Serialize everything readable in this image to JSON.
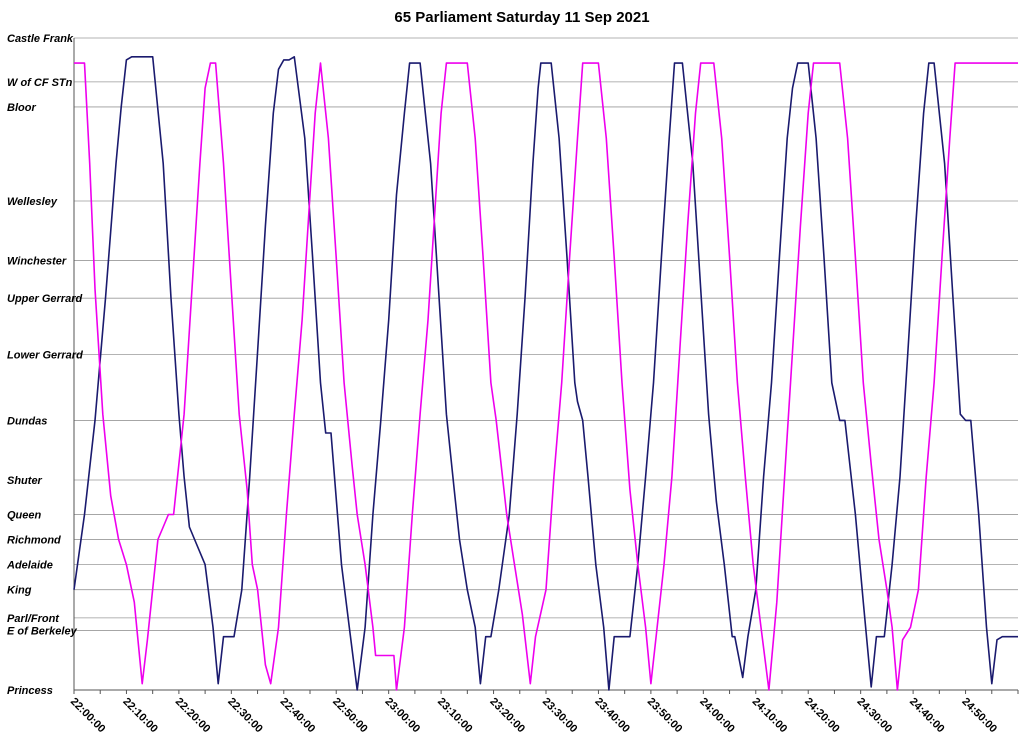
{
  "chart_data": {
    "type": "line",
    "title": "65 Parliament Saturday 11 Sep 2021",
    "xlabel": "",
    "ylabel": "",
    "grid": true,
    "x_range_minutes": [
      1320,
      1500
    ],
    "stops": [
      {
        "name": "Castle Frank",
        "pos": 0
      },
      {
        "name": "W of CF STn",
        "pos": 7
      },
      {
        "name": "Bloor",
        "pos": 11
      },
      {
        "name": "Wellesley",
        "pos": 26
      },
      {
        "name": "Winchester",
        "pos": 35.5
      },
      {
        "name": "Upper Gerrard",
        "pos": 41.5
      },
      {
        "name": "Lower Gerrard",
        "pos": 50.5
      },
      {
        "name": "Dundas",
        "pos": 61
      },
      {
        "name": "Shuter",
        "pos": 70.5
      },
      {
        "name": "Queen",
        "pos": 76
      },
      {
        "name": "Richmond",
        "pos": 80
      },
      {
        "name": "Adelaide",
        "pos": 84
      },
      {
        "name": "King",
        "pos": 88
      },
      {
        "name": "Parl/Front",
        "pos": 92.5
      },
      {
        "name": "E of Berkeley",
        "pos": 94.5
      },
      {
        "name": "Princess",
        "pos": 104
      }
    ],
    "x_tick_labels": [
      "22:00:00",
      "22:10:00",
      "22:20:00",
      "22:30:00",
      "22:40:00",
      "22:50:00",
      "23:00:00",
      "23:10:00",
      "23:20:00",
      "23:30:00",
      "23:40:00",
      "23:50:00",
      "24:00:00",
      "24:10:00",
      "24:20:00",
      "24:30:00",
      "24:40:00",
      "24:50:00"
    ],
    "x_tick_minutes": [
      1320,
      1330,
      1340,
      1350,
      1360,
      1370,
      1380,
      1390,
      1400,
      1410,
      1420,
      1430,
      1440,
      1450,
      1460,
      1470,
      1480,
      1490
    ],
    "series": [
      {
        "color": "#1a1a6e",
        "points": [
          [
            1320,
            88
          ],
          [
            1322,
            76
          ],
          [
            1324,
            61
          ],
          [
            1326,
            41.5
          ],
          [
            1328,
            20
          ],
          [
            1329,
            11
          ],
          [
            1330,
            3.5
          ],
          [
            1331,
            3
          ],
          [
            1335,
            3
          ],
          [
            1337,
            20
          ],
          [
            1338.5,
            41.5
          ],
          [
            1340,
            60
          ],
          [
            1341,
            70
          ],
          [
            1342,
            78
          ],
          [
            1343,
            80
          ],
          [
            1345,
            84
          ],
          [
            1346.5,
            94
          ],
          [
            1347.5,
            103
          ],
          [
            1348.5,
            95.5
          ],
          [
            1350.5,
            95.5
          ],
          [
            1352,
            88
          ],
          [
            1353.5,
            70
          ],
          [
            1355,
            50
          ],
          [
            1356.5,
            30
          ],
          [
            1358,
            12
          ],
          [
            1359,
            5
          ],
          [
            1360,
            3.5
          ],
          [
            1361,
            3.5
          ],
          [
            1362,
            3
          ],
          [
            1364,
            16
          ],
          [
            1365.5,
            35
          ],
          [
            1367,
            55
          ],
          [
            1368,
            63
          ],
          [
            1369,
            63
          ],
          [
            1371,
            84
          ],
          [
            1372.5,
            94
          ],
          [
            1374,
            104
          ],
          [
            1375.5,
            94
          ],
          [
            1377,
            76
          ],
          [
            1378.5,
            61
          ],
          [
            1380,
            45
          ],
          [
            1381.5,
            25
          ],
          [
            1383,
            12
          ],
          [
            1384,
            4
          ],
          [
            1386,
            4
          ],
          [
            1388,
            20
          ],
          [
            1389.5,
            40
          ],
          [
            1391,
            60
          ],
          [
            1392.5,
            72
          ],
          [
            1393.5,
            80
          ],
          [
            1395,
            88
          ],
          [
            1396.5,
            94
          ],
          [
            1397.5,
            103
          ],
          [
            1398.5,
            95.5
          ],
          [
            1399.5,
            95.5
          ],
          [
            1401,
            88
          ],
          [
            1403,
            76
          ],
          [
            1404.5,
            60
          ],
          [
            1406,
            41.5
          ],
          [
            1407.5,
            20
          ],
          [
            1408.5,
            8
          ],
          [
            1409,
            4
          ],
          [
            1411,
            4
          ],
          [
            1412.5,
            16
          ],
          [
            1414,
            35
          ],
          [
            1415.5,
            55
          ],
          [
            1416,
            58
          ],
          [
            1417,
            61
          ],
          [
            1418,
            70
          ],
          [
            1419.5,
            84
          ],
          [
            1421,
            94
          ],
          [
            1422,
            104
          ],
          [
            1423,
            95.5
          ],
          [
            1426,
            95.5
          ],
          [
            1427.5,
            84
          ],
          [
            1429,
            70
          ],
          [
            1430.5,
            55
          ],
          [
            1432,
            35
          ],
          [
            1433.5,
            16
          ],
          [
            1434.5,
            4
          ],
          [
            1436,
            4
          ],
          [
            1438,
            20
          ],
          [
            1439.5,
            40
          ],
          [
            1441,
            60
          ],
          [
            1442.5,
            74
          ],
          [
            1444,
            84
          ],
          [
            1445.5,
            95.5
          ],
          [
            1446,
            95.5
          ],
          [
            1447.5,
            102
          ],
          [
            1448.5,
            95.5
          ],
          [
            1450,
            88
          ],
          [
            1451.5,
            70
          ],
          [
            1453,
            55
          ],
          [
            1454.5,
            35
          ],
          [
            1456,
            16
          ],
          [
            1457,
            8
          ],
          [
            1458,
            4
          ],
          [
            1460,
            4
          ],
          [
            1461.5,
            16
          ],
          [
            1463,
            35
          ],
          [
            1464.5,
            55
          ],
          [
            1466,
            61
          ],
          [
            1467,
            61
          ],
          [
            1469,
            76
          ],
          [
            1470.5,
            90
          ],
          [
            1472,
            103.5
          ],
          [
            1473,
            95.5
          ],
          [
            1474.5,
            95.5
          ],
          [
            1476,
            84
          ],
          [
            1477.5,
            70
          ],
          [
            1479,
            50
          ],
          [
            1480.5,
            30
          ],
          [
            1482,
            12
          ],
          [
            1483,
            4
          ],
          [
            1484,
            4
          ],
          [
            1486,
            20
          ],
          [
            1487.5,
            40
          ],
          [
            1489,
            60
          ],
          [
            1490,
            61
          ],
          [
            1491,
            61
          ],
          [
            1492.5,
            76
          ],
          [
            1494,
            94
          ],
          [
            1495,
            103
          ],
          [
            1496,
            96
          ],
          [
            1497,
            95.5
          ],
          [
            1500,
            95.5
          ]
        ]
      },
      {
        "color": "#ee00ee",
        "points": [
          [
            1320,
            4
          ],
          [
            1322,
            4
          ],
          [
            1323,
            20
          ],
          [
            1324,
            40
          ],
          [
            1325.5,
            60
          ],
          [
            1327,
            73
          ],
          [
            1328.5,
            80
          ],
          [
            1330,
            84
          ],
          [
            1331.5,
            90
          ],
          [
            1333,
            103
          ],
          [
            1334,
            96
          ],
          [
            1336,
            80
          ],
          [
            1337,
            78
          ],
          [
            1338,
            76
          ],
          [
            1339,
            76
          ],
          [
            1341,
            60
          ],
          [
            1342.5,
            40
          ],
          [
            1344,
            20
          ],
          [
            1345,
            8
          ],
          [
            1346,
            4
          ],
          [
            1347,
            4
          ],
          [
            1348.5,
            20
          ],
          [
            1350,
            40
          ],
          [
            1351.5,
            60
          ],
          [
            1353,
            72
          ],
          [
            1354,
            84
          ],
          [
            1355,
            88
          ],
          [
            1356.5,
            100
          ],
          [
            1357.5,
            103
          ],
          [
            1359,
            94
          ],
          [
            1360.5,
            76
          ],
          [
            1362,
            60
          ],
          [
            1363.5,
            45
          ],
          [
            1365,
            25
          ],
          [
            1366,
            12
          ],
          [
            1367,
            4
          ],
          [
            1368.5,
            16
          ],
          [
            1370,
            35
          ],
          [
            1371.5,
            55
          ],
          [
            1373,
            68
          ],
          [
            1374,
            76
          ],
          [
            1375.5,
            84
          ],
          [
            1377,
            94
          ],
          [
            1377.5,
            98.5
          ],
          [
            1381,
            98.5
          ],
          [
            1381.5,
            104
          ],
          [
            1383,
            94
          ],
          [
            1384.5,
            76
          ],
          [
            1386,
            60
          ],
          [
            1387.5,
            45
          ],
          [
            1389,
            25
          ],
          [
            1390,
            12
          ],
          [
            1391,
            4
          ],
          [
            1395,
            4
          ],
          [
            1396.5,
            16
          ],
          [
            1398,
            35
          ],
          [
            1399.5,
            55
          ],
          [
            1400.5,
            61
          ],
          [
            1402.5,
            76
          ],
          [
            1404,
            84
          ],
          [
            1405.5,
            92
          ],
          [
            1407,
            103
          ],
          [
            1408,
            95.5
          ],
          [
            1410,
            88
          ],
          [
            1411.5,
            70
          ],
          [
            1413,
            55
          ],
          [
            1414.5,
            35
          ],
          [
            1416,
            16
          ],
          [
            1417,
            4
          ],
          [
            1420,
            4
          ],
          [
            1421.5,
            16
          ],
          [
            1423,
            35
          ],
          [
            1424.5,
            55
          ],
          [
            1426,
            72
          ],
          [
            1427.5,
            84
          ],
          [
            1429,
            94
          ],
          [
            1430,
            103
          ],
          [
            1431,
            95.5
          ],
          [
            1432.5,
            84
          ],
          [
            1434,
            70
          ],
          [
            1435.5,
            50
          ],
          [
            1437,
            30
          ],
          [
            1438.5,
            12
          ],
          [
            1439.5,
            4
          ],
          [
            1442,
            4
          ],
          [
            1443.5,
            16
          ],
          [
            1445,
            35
          ],
          [
            1446.5,
            55
          ],
          [
            1448,
            70
          ],
          [
            1449.5,
            84
          ],
          [
            1451,
            94
          ],
          [
            1452.5,
            104
          ],
          [
            1454,
            90
          ],
          [
            1455.5,
            70
          ],
          [
            1457,
            50
          ],
          [
            1458.5,
            30
          ],
          [
            1460,
            12
          ],
          [
            1461,
            4
          ],
          [
            1466,
            4
          ],
          [
            1467.5,
            16
          ],
          [
            1469,
            35
          ],
          [
            1470.5,
            55
          ],
          [
            1472,
            68
          ],
          [
            1473.5,
            80
          ],
          [
            1475,
            88
          ],
          [
            1476,
            94
          ],
          [
            1477,
            104
          ],
          [
            1478,
            96
          ],
          [
            1479.5,
            94
          ],
          [
            1481,
            88
          ],
          [
            1482.5,
            70
          ],
          [
            1484,
            55
          ],
          [
            1485.5,
            35
          ],
          [
            1487,
            16
          ],
          [
            1488,
            4
          ],
          [
            1500,
            4
          ]
        ]
      }
    ]
  }
}
